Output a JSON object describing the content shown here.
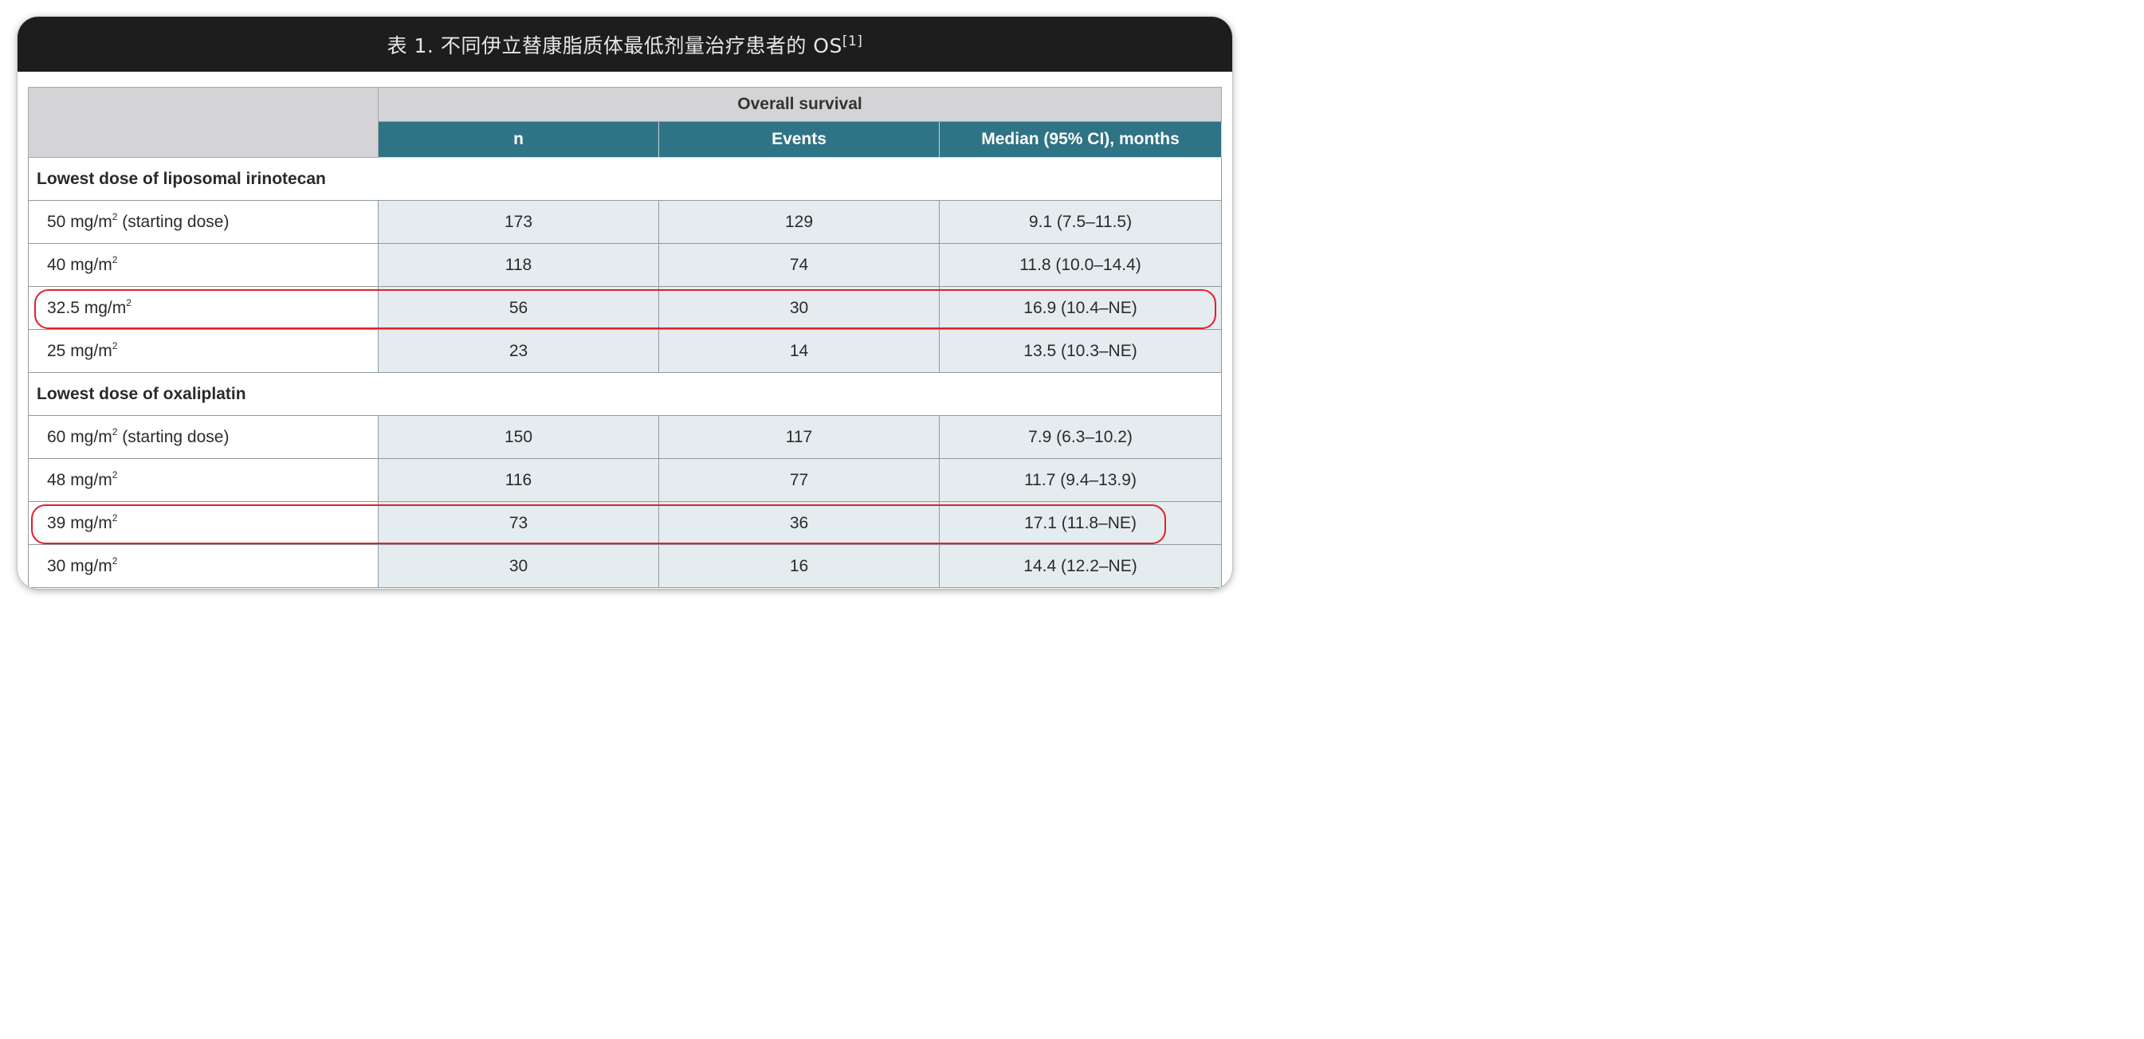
{
  "title": {
    "text": "表 1. 不同伊立替康脂质体最低剂量治疗患者的 OS",
    "ref": "[1]"
  },
  "table": {
    "group_header": "Overall survival",
    "columns": [
      "n",
      "Events",
      "Median (95% CI), months"
    ],
    "sections": [
      {
        "heading": "Lowest dose of liposomal irinotecan",
        "rows": [
          {
            "dose": "50 mg/m",
            "sup": "2",
            "note": " (starting dose)",
            "n": "173",
            "events": "129",
            "median": "9.1 (7.5–11.5)",
            "highlighted": false
          },
          {
            "dose": "40 mg/m",
            "sup": "2",
            "note": "",
            "n": "118",
            "events": "74",
            "median": "11.8 (10.0–14.4)",
            "highlighted": false
          },
          {
            "dose": "32.5 mg/m",
            "sup": "2",
            "note": "",
            "n": "56",
            "events": "30",
            "median": "16.9 (10.4–NE)",
            "highlighted": true
          },
          {
            "dose": "25 mg/m",
            "sup": "2",
            "note": "",
            "n": "23",
            "events": "14",
            "median": "13.5 (10.3–NE)",
            "highlighted": false
          }
        ]
      },
      {
        "heading": "Lowest dose of oxaliplatin",
        "rows": [
          {
            "dose": "60 mg/m",
            "sup": "2",
            "note": " (starting dose)",
            "n": "150",
            "events": "117",
            "median": "7.9 (6.3–10.2)",
            "highlighted": false
          },
          {
            "dose": "48 mg/m",
            "sup": "2",
            "note": "",
            "n": "116",
            "events": "77",
            "median": "11.7 (9.4–13.9)",
            "highlighted": false
          },
          {
            "dose": "39 mg/m",
            "sup": "2",
            "note": "",
            "n": "73",
            "events": "36",
            "median": "17.1 (11.8–NE)",
            "highlighted": true
          },
          {
            "dose": "30 mg/m",
            "sup": "2",
            "note": "",
            "n": "30",
            "events": "16",
            "median": "14.4 (12.2–NE)",
            "highlighted": false
          }
        ]
      }
    ]
  },
  "colors": {
    "title_bar": "#1d1d1d",
    "header_teal": "#2f7386",
    "header_gray": "#d4d4d6",
    "cell_tint": "#e4ecef",
    "highlight_red": "#e0202a"
  }
}
